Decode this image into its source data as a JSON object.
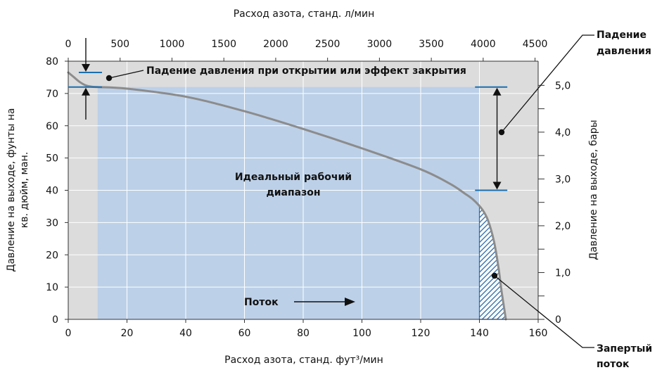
{
  "chart_data": {
    "type": "line",
    "xlabel": "Расход азота, станд. фут³/мин",
    "xlabel_top": "Расход азота, станд. л/мин",
    "ylabel_left": "Давление на выходе, фунты на кв. дюйм, ман.",
    "ylabel_left_line1": "Давление на выходе, фунты на",
    "ylabel_left_line2": "кв. дюйм, ман.",
    "ylabel_right": "Давление на выходе, бары",
    "xlim": [
      0,
      160
    ],
    "ylim": [
      0,
      80
    ],
    "xlim_top": [
      0,
      4530
    ],
    "ylim_right": [
      0,
      5.516
    ],
    "x_ticks": [
      0,
      20,
      40,
      60,
      80,
      100,
      120,
      140,
      160
    ],
    "x_tick_labels": [
      "0",
      "20",
      "40",
      "60",
      "80",
      "100",
      "120",
      "140",
      "160"
    ],
    "y_ticks": [
      0,
      10,
      20,
      30,
      40,
      50,
      60,
      70,
      80
    ],
    "y_tick_labels": [
      "0",
      "10",
      "20",
      "30",
      "40",
      "50",
      "60",
      "70",
      "80"
    ],
    "x_top_ticks": [
      0,
      500,
      1000,
      1500,
      2000,
      2500,
      3000,
      3500,
      4000,
      4500
    ],
    "x_top_tick_labels": [
      "0",
      "500",
      "1000",
      "1500",
      "2000",
      "2500",
      "3000",
      "3500",
      "4000",
      "4500"
    ],
    "y_right_ticks": [
      0,
      0.5,
      1.0,
      1.5,
      2.0,
      2.5,
      3.0,
      3.5,
      4.0,
      4.5,
      5.0
    ],
    "y_right_labels": [
      {
        "value": 0,
        "label": "0"
      },
      {
        "value": 1.0,
        "label": "1,0"
      },
      {
        "value": 2.0,
        "label": "2,0"
      },
      {
        "value": 3.0,
        "label": "3,0"
      },
      {
        "value": 4.0,
        "label": "4,0"
      },
      {
        "value": 5.0,
        "label": "5,0"
      }
    ],
    "grid": true,
    "series": [
      {
        "color": "#8c8c8c",
        "points": [
          [
            0,
            76.5
          ],
          [
            2,
            75
          ],
          [
            4,
            73.5
          ],
          [
            6,
            72.5
          ],
          [
            8,
            72.1
          ],
          [
            10,
            72
          ],
          [
            20,
            71.5
          ],
          [
            40,
            69
          ],
          [
            60,
            64.5
          ],
          [
            80,
            59
          ],
          [
            100,
            53
          ],
          [
            120,
            46.5
          ],
          [
            130,
            42
          ],
          [
            135,
            39
          ],
          [
            138,
            37
          ],
          [
            141,
            34
          ],
          [
            143,
            30.5
          ],
          [
            145,
            24
          ],
          [
            146.5,
            16
          ],
          [
            147.5,
            9
          ],
          [
            148.5,
            3
          ],
          [
            149,
            0
          ]
        ]
      }
    ],
    "background_region": {
      "x": [
        0,
        160
      ],
      "y": [
        0,
        80
      ],
      "color": "#dcdcdc"
    },
    "ideal_region": {
      "x": [
        10,
        140
      ],
      "y": [
        0,
        72
      ],
      "color": "#bcd0e8"
    },
    "choked_region": {
      "x": [
        140,
        149
      ],
      "color": "#2a6aa8"
    },
    "annotations": {
      "droop": "Падение давления при открытии или эффект закрытия",
      "ideal_line1": "Идеальный рабочий",
      "ideal_line2": "диапазон",
      "flow": "Поток",
      "pressure_drop_line1": "Падение",
      "pressure_drop_line2": "давления",
      "choked_line1": "Запертый",
      "choked_line2": "поток"
    },
    "markers": {
      "droop_top_y": 76.5,
      "droop_bottom_y": 72,
      "drop_top_y": 72,
      "drop_bottom_y": 40
    },
    "colors": {
      "accent": "#1a6fb0",
      "line": "#8c8c8c"
    }
  }
}
